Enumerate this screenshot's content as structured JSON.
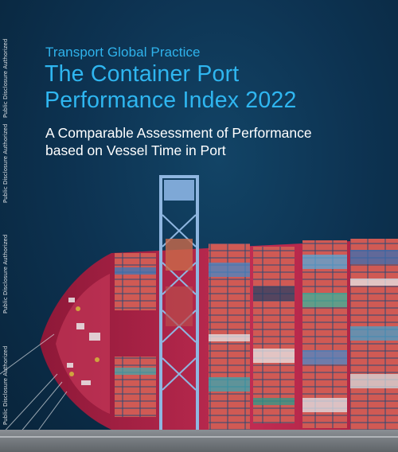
{
  "watermark": "Public Disclosure Authorized",
  "kicker": "Transport Global Practice",
  "title_line1": "The Container Port",
  "title_line2": "Performance Index 2022",
  "subtitle_line1": "A Comparable Assessment of Performance",
  "subtitle_line2": "based on Vessel Time in Port",
  "colors": {
    "background": "#0d3352",
    "title": "#2fb6f0",
    "subtitle": "#ffffff",
    "hull": "#b8254a"
  }
}
